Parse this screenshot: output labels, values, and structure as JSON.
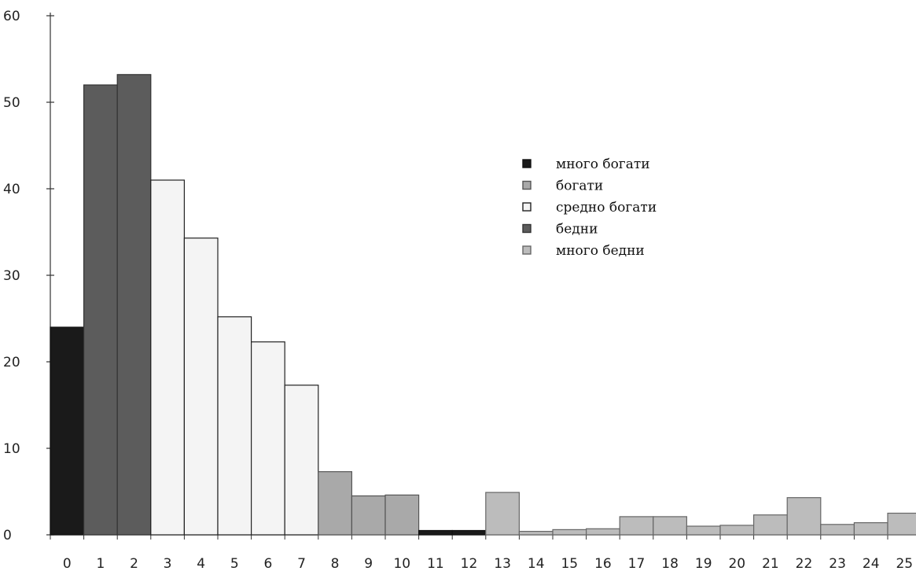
{
  "chart_data": {
    "type": "bar",
    "title": "",
    "xlabel": "",
    "ylabel": "",
    "ylim": [
      0,
      60
    ],
    "yticks": [
      "0",
      "10",
      "20",
      "30",
      "40",
      "50",
      "60"
    ],
    "categories": [
      "0",
      "1",
      "2",
      "3",
      "4",
      "5",
      "6",
      "7",
      "8",
      "9",
      "10",
      "11",
      "12",
      "13",
      "14",
      "15",
      "16",
      "17",
      "18",
      "19",
      "20",
      "21",
      "22",
      "23",
      "24",
      "25"
    ],
    "values": [
      24,
      52,
      53.2,
      41,
      34.3,
      25.2,
      22.3,
      17.3,
      7.3,
      4.5,
      4.6,
      0.5,
      0.5,
      4.9,
      0.4,
      0.6,
      0.7,
      2.1,
      2.1,
      1,
      1.1,
      2.3,
      4.3,
      1.2,
      1.4,
      2.5
    ],
    "groups": [
      0,
      3,
      3,
      2,
      2,
      2,
      2,
      2,
      1,
      1,
      1,
      0,
      0,
      4,
      4,
      4,
      4,
      4,
      4,
      4,
      4,
      4,
      4,
      4,
      4,
      4
    ],
    "legend": [
      {
        "label": "много богати",
        "color": "#1a1a1a",
        "stroke": "#111111"
      },
      {
        "label": "богати",
        "color": "#a9a9a9",
        "stroke": "#555555"
      },
      {
        "label": "средно богати",
        "color": "#f4f4f4",
        "stroke": "#222222"
      },
      {
        "label": "бедни",
        "color": "#5c5c5c",
        "stroke": "#333333"
      },
      {
        "label": "много бедни",
        "color": "#bcbcbc",
        "stroke": "#666666"
      }
    ],
    "legend_position": "upper-right",
    "grid": false
  }
}
